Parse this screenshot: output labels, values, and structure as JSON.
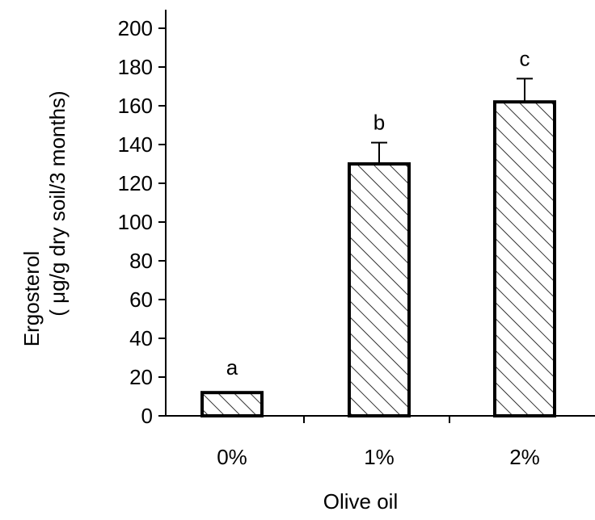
{
  "chart_data": {
    "type": "bar",
    "categories": [
      "0%",
      "1%",
      "2%"
    ],
    "values": [
      12,
      130,
      162
    ],
    "errors": [
      0,
      11,
      12
    ],
    "significance_labels": [
      "a",
      "b",
      "c"
    ],
    "xlabel": "Olive oil",
    "ylabel_line1": "Ergosterol",
    "ylabel_line2": "( μg/g  dry  soil/3 months)",
    "ylim": [
      0,
      200
    ],
    "yticks": [
      "0",
      "20",
      "40",
      "60",
      "80",
      "100",
      "120",
      "140",
      "160",
      "180",
      "200"
    ],
    "bar_fill": "diagonal-hatch",
    "bar_color": "#000000"
  }
}
